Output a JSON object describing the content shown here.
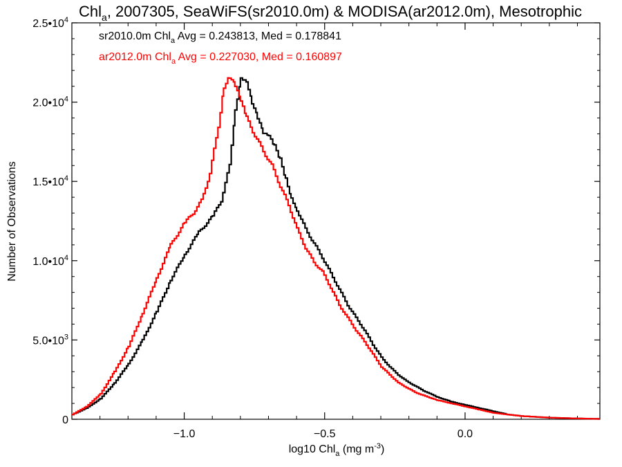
{
  "chart_data": {
    "type": "line",
    "title": {
      "main": "Chl",
      "sub": "a",
      "rest": ", 2007305, SeaWiFS(sr2010.0m) & MODISA(ar2012.0m), Mesotrophic"
    },
    "xlabel": {
      "main": "log10 Chl",
      "sub": "a",
      "rest": " (mg m",
      "sup": "-3",
      "end": ")"
    },
    "ylabel": "Number of Observations",
    "xlim": [
      -1.4,
      0.48
    ],
    "ylim": [
      0,
      25000
    ],
    "xticks": [
      {
        "value": -1.0,
        "label": "−1.0"
      },
      {
        "value": -0.5,
        "label": "−0.5"
      },
      {
        "value": 0.0,
        "label": "0.0"
      }
    ],
    "yticks": [
      {
        "value": 0,
        "label": "0"
      },
      {
        "value": 5000,
        "label": "5.0•10",
        "exp": "3"
      },
      {
        "value": 10000,
        "label": "1.0•10",
        "exp": "4"
      },
      {
        "value": 15000,
        "label": "1.5•10",
        "exp": "4"
      },
      {
        "value": 20000,
        "label": "2.0•10",
        "exp": "4"
      },
      {
        "value": 25000,
        "label": "2.5•10",
        "exp": "4"
      }
    ],
    "annotations": [
      {
        "pre": "sr2010.0m Chl",
        "sub": "a",
        "post": " Avg = 0.243813, Med = 0.178841",
        "color": "#000000"
      },
      {
        "pre": "ar2012.0m Chl",
        "sub": "a",
        "post": " Avg = 0.227030, Med = 0.160897",
        "color": "#ff0000"
      }
    ],
    "series": [
      {
        "color": "#000000",
        "points": [
          [
            -1.4,
            300
          ],
          [
            -1.35,
            700
          ],
          [
            -1.3,
            1300
          ],
          [
            -1.25,
            2300
          ],
          [
            -1.2,
            3500
          ],
          [
            -1.15,
            5000
          ],
          [
            -1.1,
            6800
          ],
          [
            -1.05,
            8800
          ],
          [
            -1.0,
            10400
          ],
          [
            -0.95,
            11800
          ],
          [
            -0.9,
            12800
          ],
          [
            -0.87,
            13800
          ],
          [
            -0.84,
            16000
          ],
          [
            -0.82,
            19500
          ],
          [
            -0.8,
            21600
          ],
          [
            -0.78,
            21400
          ],
          [
            -0.76,
            20000
          ],
          [
            -0.74,
            19000
          ],
          [
            -0.72,
            18000
          ],
          [
            -0.7,
            17800
          ],
          [
            -0.68,
            17200
          ],
          [
            -0.66,
            16400
          ],
          [
            -0.64,
            15200
          ],
          [
            -0.62,
            14000
          ],
          [
            -0.6,
            13200
          ],
          [
            -0.57,
            12000
          ],
          [
            -0.54,
            11100
          ],
          [
            -0.51,
            10200
          ],
          [
            -0.48,
            9200
          ],
          [
            -0.45,
            8200
          ],
          [
            -0.42,
            7200
          ],
          [
            -0.39,
            6400
          ],
          [
            -0.36,
            5600
          ],
          [
            -0.33,
            4700
          ],
          [
            -0.3,
            3900
          ],
          [
            -0.27,
            3300
          ],
          [
            -0.24,
            2800
          ],
          [
            -0.21,
            2400
          ],
          [
            -0.18,
            2100
          ],
          [
            -0.15,
            1800
          ],
          [
            -0.1,
            1400
          ],
          [
            -0.05,
            1100
          ],
          [
            0.0,
            900
          ],
          [
            0.05,
            700
          ],
          [
            0.1,
            500
          ],
          [
            0.15,
            300
          ],
          [
            0.2,
            200
          ],
          [
            0.3,
            100
          ],
          [
            0.4,
            50
          ],
          [
            0.48,
            20
          ]
        ]
      },
      {
        "color": "#ff0000",
        "points": [
          [
            -1.4,
            300
          ],
          [
            -1.35,
            800
          ],
          [
            -1.3,
            1600
          ],
          [
            -1.25,
            3000
          ],
          [
            -1.2,
            4600
          ],
          [
            -1.15,
            6700
          ],
          [
            -1.1,
            8900
          ],
          [
            -1.05,
            11000
          ],
          [
            -1.0,
            12400
          ],
          [
            -0.97,
            13000
          ],
          [
            -0.94,
            13800
          ],
          [
            -0.91,
            15500
          ],
          [
            -0.88,
            18500
          ],
          [
            -0.86,
            21000
          ],
          [
            -0.84,
            21600
          ],
          [
            -0.82,
            21000
          ],
          [
            -0.8,
            20000
          ],
          [
            -0.78,
            19000
          ],
          [
            -0.75,
            17900
          ],
          [
            -0.72,
            16900
          ],
          [
            -0.69,
            16000
          ],
          [
            -0.66,
            14700
          ],
          [
            -0.63,
            13500
          ],
          [
            -0.6,
            12000
          ],
          [
            -0.57,
            10800
          ],
          [
            -0.54,
            9900
          ],
          [
            -0.51,
            9300
          ],
          [
            -0.48,
            8300
          ],
          [
            -0.45,
            7200
          ],
          [
            -0.42,
            6400
          ],
          [
            -0.39,
            5600
          ],
          [
            -0.36,
            4900
          ],
          [
            -0.33,
            4100
          ],
          [
            -0.3,
            3300
          ],
          [
            -0.27,
            2800
          ],
          [
            -0.24,
            2300
          ],
          [
            -0.21,
            2000
          ],
          [
            -0.18,
            1700
          ],
          [
            -0.15,
            1500
          ],
          [
            -0.1,
            1200
          ],
          [
            -0.05,
            1000
          ],
          [
            0.0,
            800
          ],
          [
            0.05,
            600
          ],
          [
            0.1,
            400
          ],
          [
            0.15,
            300
          ],
          [
            0.2,
            200
          ],
          [
            0.3,
            100
          ],
          [
            0.4,
            50
          ],
          [
            0.48,
            20
          ]
        ]
      }
    ]
  }
}
